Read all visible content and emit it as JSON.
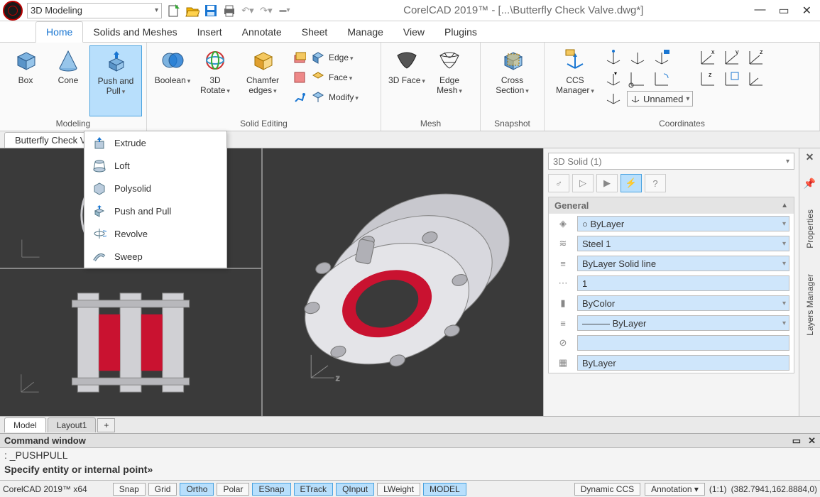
{
  "title": {
    "app": "CorelCAD 2019™",
    "file": "[...\\Butterfly Check Valve.dwg*]"
  },
  "workspace": "3D Modeling",
  "tabs": [
    "Home",
    "Solids and Meshes",
    "Insert",
    "Annotate",
    "Sheet",
    "Manage",
    "View",
    "Plugins"
  ],
  "activeTab": "Home",
  "ribbon": {
    "groups": [
      {
        "label": "Modeling",
        "buttons": [
          {
            "label": "Box"
          },
          {
            "label": "Cone"
          },
          {
            "label": "Push and\nPull",
            "active": true
          }
        ]
      },
      {
        "label": "Solid Editing",
        "buttons": [
          {
            "label": "Boolean"
          },
          {
            "label": "3D Rotate"
          },
          {
            "label": "Chamfer\nedges"
          }
        ],
        "small": [
          [
            "Edge"
          ],
          [
            "Face"
          ],
          [
            "Modify"
          ]
        ]
      },
      {
        "label": "Mesh",
        "buttons": [
          {
            "label": "3D Face"
          },
          {
            "label": "Edge\nMesh"
          }
        ]
      },
      {
        "label": "Snapshot",
        "buttons": [
          {
            "label": "Cross\nSection"
          }
        ]
      },
      {
        "label": "Coordinates",
        "buttons": [
          {
            "label": "CCS\nManager"
          }
        ],
        "ccsname": "Unnamed"
      }
    ]
  },
  "dropdown": {
    "items": [
      {
        "label": "Extrude",
        "icon": "extrude"
      },
      {
        "label": "Loft",
        "icon": "loft"
      },
      {
        "label": "Polysolid",
        "icon": "polysolid"
      },
      {
        "label": "Push and Pull",
        "icon": "pushpull"
      },
      {
        "label": "Revolve",
        "icon": "revolve"
      },
      {
        "label": "Sweep",
        "icon": "sweep"
      }
    ]
  },
  "docTab": "Butterfly Check Valve.dwg*",
  "properties": {
    "selection": "3D Solid (1)",
    "sectionTitle": "General",
    "rows": [
      {
        "icon": "color",
        "value": "○ ByLayer",
        "dd": true
      },
      {
        "icon": "layer",
        "value": "Steel 1",
        "dd": true
      },
      {
        "icon": "ltype",
        "value": "ByLayer    Solid line",
        "dd": true
      },
      {
        "icon": "lscale",
        "value": "1",
        "dd": false
      },
      {
        "icon": "lweight",
        "value": "ByColor",
        "dd": true
      },
      {
        "icon": "plot",
        "value": "——— ByLayer",
        "dd": true
      },
      {
        "icon": "link",
        "value": "",
        "dd": false
      },
      {
        "icon": "transp",
        "value": "ByLayer",
        "dd": false
      }
    ]
  },
  "sidetabs": [
    "Properties",
    "Layers Manager"
  ],
  "sheetTabs": {
    "active": "Model",
    "others": [
      "Layout1"
    ]
  },
  "command": {
    "title": "Command window",
    "line1": ": _PUSHPULL",
    "line2": "Specify entity or internal point»"
  },
  "status": {
    "appver": "CorelCAD 2019™ x64",
    "toggles": [
      {
        "label": "Snap",
        "on": false
      },
      {
        "label": "Grid",
        "on": false
      },
      {
        "label": "Ortho",
        "on": true
      },
      {
        "label": "Polar",
        "on": false
      },
      {
        "label": "ESnap",
        "on": true
      },
      {
        "label": "ETrack",
        "on": true
      },
      {
        "label": "QInput",
        "on": true
      },
      {
        "label": "LWeight",
        "on": false
      },
      {
        "label": "MODEL",
        "on": true
      }
    ],
    "dynccs": "Dynamic CCS",
    "annotation": "Annotation",
    "scale": "(1:1)",
    "coords": "(382.7941,162.8884,0)"
  },
  "viewport": {
    "bg": "#3a3a3a",
    "flange_outer": "#d0d0d4",
    "flange_shadow": "#9a9aa0",
    "bolt": "#b8b8bc",
    "ring": "#c91230"
  }
}
